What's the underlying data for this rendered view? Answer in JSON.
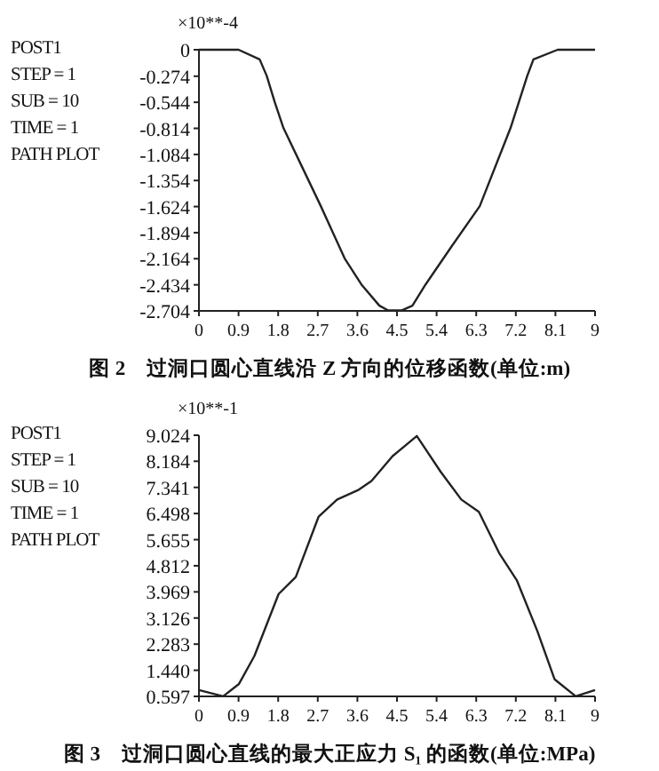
{
  "chart_data": [
    {
      "type": "line",
      "title": "图 2　过洞口圆心直线沿 Z 方向的位移函数(单位:m)",
      "annotations": [
        "×10**-4",
        "POST1",
        "STEP = 1",
        "SUB = 10",
        "TIME = 1",
        "PATH PLOT"
      ],
      "x": [
        0,
        0.9,
        1.38,
        1.54,
        1.72,
        1.92,
        2.35,
        2.77,
        3.31,
        3.69,
        4.1,
        4.3,
        4.6,
        4.85,
        5.15,
        5.75,
        6.38,
        7.08,
        7.46,
        7.6,
        8.15,
        9
      ],
      "series": [
        {
          "color": "#222222",
          "values": [
            0,
            0,
            -0.1,
            -0.27,
            -0.54,
            -0.81,
            -1.22,
            -1.62,
            -2.16,
            -2.43,
            -2.65,
            -2.7,
            -2.7,
            -2.65,
            -2.43,
            -2.03,
            -1.62,
            -0.81,
            -0.27,
            -0.1,
            0,
            0
          ]
        }
      ],
      "xlim": [
        0,
        9
      ],
      "xticks": [
        0,
        0.9,
        1.8,
        2.7,
        3.6,
        4.5,
        5.4,
        6.3,
        7.2,
        8.1,
        9
      ],
      "ylim": [
        -2.704,
        0
      ],
      "yticks": [
        0,
        -0.274,
        -0.544,
        -0.814,
        -1.084,
        -1.354,
        -1.624,
        -1.894,
        -2.164,
        -2.434,
        -2.704
      ]
    },
    {
      "type": "line",
      "title": "图 3　过洞口圆心直线的最大正应力 S₁ 的函数(单位:MPa)",
      "annotations": [
        "×10**-1",
        "POST1",
        "STEP = 1",
        "SUB = 10",
        "TIME = 1",
        "PATH PLOT"
      ],
      "x": [
        0,
        0.55,
        0.91,
        1.26,
        1.81,
        2.2,
        2.72,
        3.14,
        3.61,
        3.92,
        4.4,
        4.95,
        5.49,
        5.96,
        6.36,
        6.83,
        7.22,
        7.69,
        8.08,
        8.56,
        9
      ],
      "series": [
        {
          "color": "#222222",
          "values": [
            0.8,
            0.6,
            1.0,
            1.9,
            3.9,
            4.45,
            6.4,
            6.95,
            7.25,
            7.55,
            8.35,
            9.0,
            7.85,
            6.95,
            6.55,
            5.2,
            4.35,
            2.7,
            1.15,
            0.6,
            0.8
          ]
        }
      ],
      "xlim": [
        0,
        9
      ],
      "xticks": [
        0,
        0.9,
        1.8,
        2.7,
        3.6,
        4.5,
        5.4,
        6.3,
        7.2,
        8.1,
        9
      ],
      "ylim": [
        0.597,
        9.024
      ],
      "yticks": [
        {
          "value": 0.597,
          "label": "0.597"
        },
        {
          "value": 1.44,
          "label": "1.440"
        },
        2.283,
        3.126,
        3.969,
        4.812,
        5.655,
        6.498,
        7.341,
        8.184,
        9.024
      ]
    }
  ]
}
